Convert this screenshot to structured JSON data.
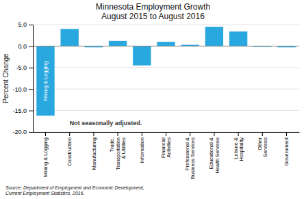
{
  "chart_data": {
    "type": "bar",
    "title": "Minnesota Employment Growth\nAugust 2015 to August 2016",
    "categories": [
      "Mining & Logging",
      "Construction",
      "Manufacturing",
      "Trade,\nTransportation\n& Utilities",
      "Information",
      "Financial\nActivities",
      "Professional &\nBusiness Services",
      "Educational &\nHealth Services",
      "Leisure &\nHospitality",
      "Other\nServices",
      "Government"
    ],
    "values": [
      -16.2,
      4.0,
      -0.3,
      1.2,
      -4.5,
      1.0,
      0.3,
      4.5,
      3.4,
      -0.2,
      -0.3
    ],
    "color": "#29a8e0",
    "ylabel": "Percent Change",
    "ylim": [
      -20.0,
      5.0
    ],
    "yticks": [
      {
        "value": 5.0,
        "label": "5.0"
      },
      {
        "value": 0.0,
        "label": "0.0"
      },
      {
        "value": -5.0,
        "label": "-5.0"
      },
      {
        "value": -10.0,
        "label": "-10.0"
      },
      {
        "value": -15.0,
        "label": "-15.0"
      },
      {
        "value": -20.0,
        "label": "-20.0"
      }
    ],
    "grid": true,
    "annotations": [
      "Mining & Logging",
      "Not seasonally adjusted.",
      "Source: Department of Employment and Economic Development,\nCurrent Employment Statistics, 2016."
    ]
  }
}
